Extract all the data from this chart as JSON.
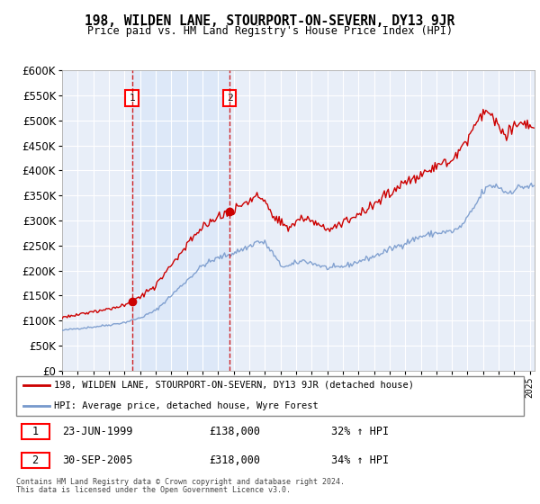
{
  "title": "198, WILDEN LANE, STOURPORT-ON-SEVERN, DY13 9JR",
  "subtitle": "Price paid vs. HM Land Registry's House Price Index (HPI)",
  "ylim": [
    0,
    600000
  ],
  "yticks": [
    0,
    50000,
    100000,
    150000,
    200000,
    250000,
    300000,
    350000,
    400000,
    450000,
    500000,
    550000,
    600000
  ],
  "xlim_start": 1995.0,
  "xlim_end": 2025.3,
  "sale1_date": 1999.478,
  "sale1_price": 138000,
  "sale2_date": 2005.747,
  "sale2_price": 318000,
  "legend_entry1": "198, WILDEN LANE, STOURPORT-ON-SEVERN, DY13 9JR (detached house)",
  "legend_entry2": "HPI: Average price, detached house, Wyre Forest",
  "footnote1": "Contains HM Land Registry data © Crown copyright and database right 2024.",
  "footnote2": "This data is licensed under the Open Government Licence v3.0.",
  "red_color": "#cc0000",
  "blue_color": "#7799cc",
  "shade_color": "#dde8f8",
  "bg_color": "#e8eef8",
  "grid_color": "#cccccc"
}
